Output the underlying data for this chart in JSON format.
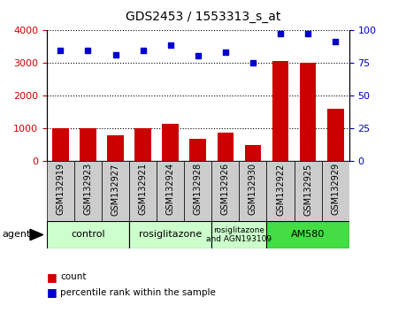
{
  "title": "GDS2453 / 1553313_s_at",
  "samples": [
    "GSM132919",
    "GSM132923",
    "GSM132927",
    "GSM132921",
    "GSM132924",
    "GSM132928",
    "GSM132926",
    "GSM132930",
    "GSM132922",
    "GSM132925",
    "GSM132929"
  ],
  "counts": [
    1000,
    1000,
    800,
    1000,
    1150,
    680,
    880,
    500,
    3050,
    3000,
    1600
  ],
  "percentiles": [
    84,
    84,
    81,
    84,
    88,
    80,
    83,
    75,
    97,
    97,
    91
  ],
  "bar_color": "#cc0000",
  "dot_color": "#0000cc",
  "ylim_left": [
    0,
    4000
  ],
  "ylim_right": [
    0,
    100
  ],
  "yticks_left": [
    0,
    1000,
    2000,
    3000,
    4000
  ],
  "yticks_right": [
    0,
    25,
    50,
    75,
    100
  ],
  "groups": [
    {
      "label": "control",
      "start": 0,
      "end": 3,
      "color": "#ccffcc"
    },
    {
      "label": "rosiglitazone",
      "start": 3,
      "end": 6,
      "color": "#ccffcc"
    },
    {
      "label": "rosiglitazone\nand AGN193109",
      "start": 6,
      "end": 8,
      "color": "#ccffcc"
    },
    {
      "label": "AM580",
      "start": 8,
      "end": 11,
      "color": "#44dd44"
    }
  ],
  "agent_label": "agent",
  "legend_count_label": "count",
  "legend_pct_label": "percentile rank within the sample",
  "background_color": "#ffffff",
  "plot_bg_color": "#ffffff",
  "grid_color": "#000000",
  "tick_label_color_left": "#cc0000",
  "tick_label_color_right": "#0000cc",
  "title_color": "#000000",
  "xtick_bg_color": "#cccccc"
}
